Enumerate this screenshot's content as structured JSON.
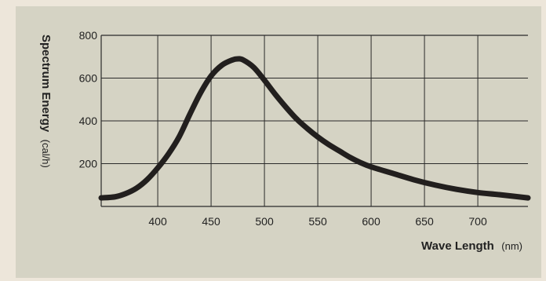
{
  "colors": {
    "page_background": "#ede6da",
    "panel_background": "#d5d3c4",
    "plot_background": "#d5d3c4",
    "grid": "#2a2a2a",
    "curve": "#221f1e",
    "text": "#222222"
  },
  "chart_data": {
    "type": "line",
    "title": "",
    "xlabel": "Wave Length",
    "xlabel_unit": "(nm)",
    "ylabel": "Spectrum Energy",
    "ylabel_unit": "(cal/h)",
    "xlim": [
      347,
      747
    ],
    "ylim": [
      0,
      800
    ],
    "x_ticks": [
      400,
      450,
      500,
      550,
      600,
      650,
      700
    ],
    "y_ticks": [
      200,
      400,
      600,
      800
    ],
    "grid": true,
    "series": [
      {
        "x": [
          347,
          360,
          370,
          380,
          390,
          400,
          410,
          420,
          430,
          440,
          450,
          460,
          470,
          475,
          480,
          490,
          500,
          510,
          520,
          530,
          540,
          550,
          560,
          570,
          580,
          590,
          600,
          620,
          640,
          660,
          680,
          700,
          720,
          747
        ],
        "y": [
          40,
          45,
          60,
          85,
          125,
          180,
          245,
          325,
          430,
          530,
          610,
          660,
          685,
          690,
          685,
          650,
          590,
          525,
          465,
          410,
          365,
          325,
          290,
          260,
          230,
          205,
          185,
          155,
          125,
          100,
          80,
          65,
          55,
          40
        ]
      }
    ]
  }
}
